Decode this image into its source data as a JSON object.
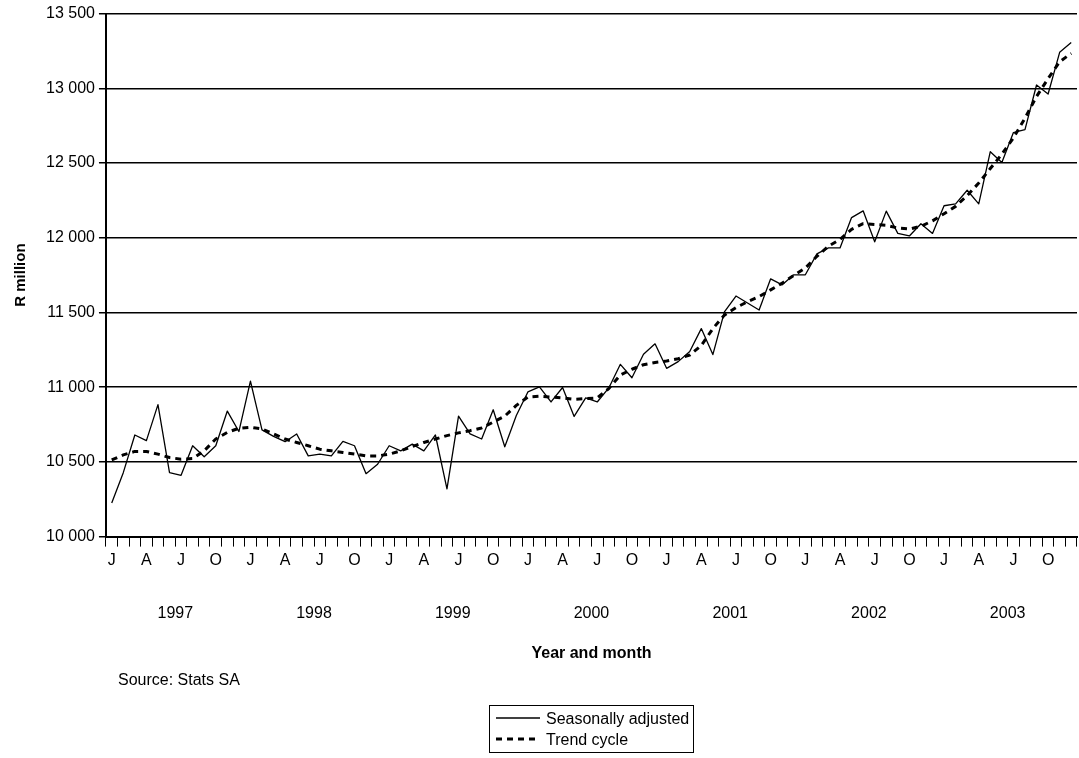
{
  "chart_data": {
    "type": "line",
    "xlabel": "Year and month",
    "ylabel": "R million",
    "categories": [
      "J",
      null,
      null,
      "A",
      null,
      null,
      "J",
      null,
      null,
      "O",
      null,
      null,
      "J",
      null,
      null,
      "A",
      null,
      null,
      "J",
      null,
      null,
      "O",
      null,
      null,
      "J",
      null,
      null,
      "A",
      null,
      null,
      "J",
      null,
      null,
      "O",
      null,
      null,
      "J",
      null,
      null,
      "A",
      null,
      null,
      "J",
      null,
      null,
      "O",
      null,
      null,
      "J",
      null,
      null,
      "A",
      null,
      null,
      "J",
      null,
      null,
      "O",
      null,
      null,
      "J",
      null,
      null,
      "A",
      null,
      null,
      "J",
      null,
      null,
      "O",
      null,
      null,
      "J",
      null,
      null,
      "A",
      null,
      null,
      "J",
      null,
      null,
      "O",
      null,
      null
    ],
    "series": [
      {
        "name": "Seasonally adjusted",
        "color": "#000000",
        "line_style": "solid",
        "values": [
          10225,
          10428,
          10680,
          10642,
          10883,
          10428,
          10410,
          10608,
          10534,
          10608,
          10840,
          10703,
          11040,
          10714,
          10671,
          10635,
          10687,
          10540,
          10552,
          10540,
          10637,
          10608,
          10421,
          10484,
          10608,
          10574,
          10619,
          10574,
          10680,
          10320,
          10806,
          10687,
          10653,
          10849,
          10601,
          10810,
          10968,
          11002,
          10901,
          10998,
          10804,
          10928,
          10901,
          10995,
          11153,
          11063,
          11220,
          11290,
          11126,
          11171,
          11239,
          11392,
          11218,
          11504,
          11610,
          11563,
          11516,
          11725,
          11685,
          11752,
          11752,
          11892,
          11932,
          11932,
          12135,
          12180,
          11973,
          12178,
          12029,
          12012,
          12094,
          12029,
          12214,
          12227,
          12318,
          12227,
          12576,
          12504,
          12704,
          12723,
          13022,
          12962,
          13241,
          13306
        ]
      },
      {
        "name": "Trend cycle",
        "color": "#000000",
        "line_style": "dashed",
        "values": [
          10513,
          10547,
          10570,
          10570,
          10552,
          10529,
          10518,
          10522,
          10574,
          10653,
          10698,
          10725,
          10732,
          10720,
          10687,
          10653,
          10630,
          10608,
          10585,
          10574,
          10563,
          10552,
          10540,
          10540,
          10552,
          10574,
          10603,
          10630,
          10653,
          10676,
          10694,
          10709,
          10727,
          10766,
          10806,
          10878,
          10934,
          10939,
          10934,
          10928,
          10919,
          10923,
          10928,
          10991,
          11081,
          11120,
          11150,
          11165,
          11175,
          11190,
          11215,
          11279,
          11392,
          11482,
          11532,
          11572,
          11606,
          11651,
          11696,
          11748,
          11797,
          11876,
          11944,
          11989,
          12056,
          12094,
          12089,
          12084,
          12065,
          12058,
          12077,
          12113,
          12161,
          12210,
          12282,
          12366,
          12463,
          12559,
          12668,
          12800,
          12945,
          13065,
          13178,
          13234
        ]
      }
    ],
    "ylim": [
      10000,
      13500
    ],
    "yticks": [
      {
        "value": 10000,
        "label": "10 000"
      },
      {
        "value": 10500,
        "label": "10 500"
      },
      {
        "value": 11000,
        "label": "11 000"
      },
      {
        "value": 11500,
        "label": "11 500"
      },
      {
        "value": 12000,
        "label": "12 000"
      },
      {
        "value": 12500,
        "label": "12 500"
      },
      {
        "value": 13000,
        "label": "13 000"
      },
      {
        "value": 13500,
        "label": "13 500"
      }
    ],
    "grid": "y",
    "legend": "bottom",
    "marker": "none",
    "annotations": [
      "1997",
      "1998",
      "1999",
      "2000",
      "2001",
      "2002",
      "2003",
      "Source: Stats SA"
    ]
  }
}
